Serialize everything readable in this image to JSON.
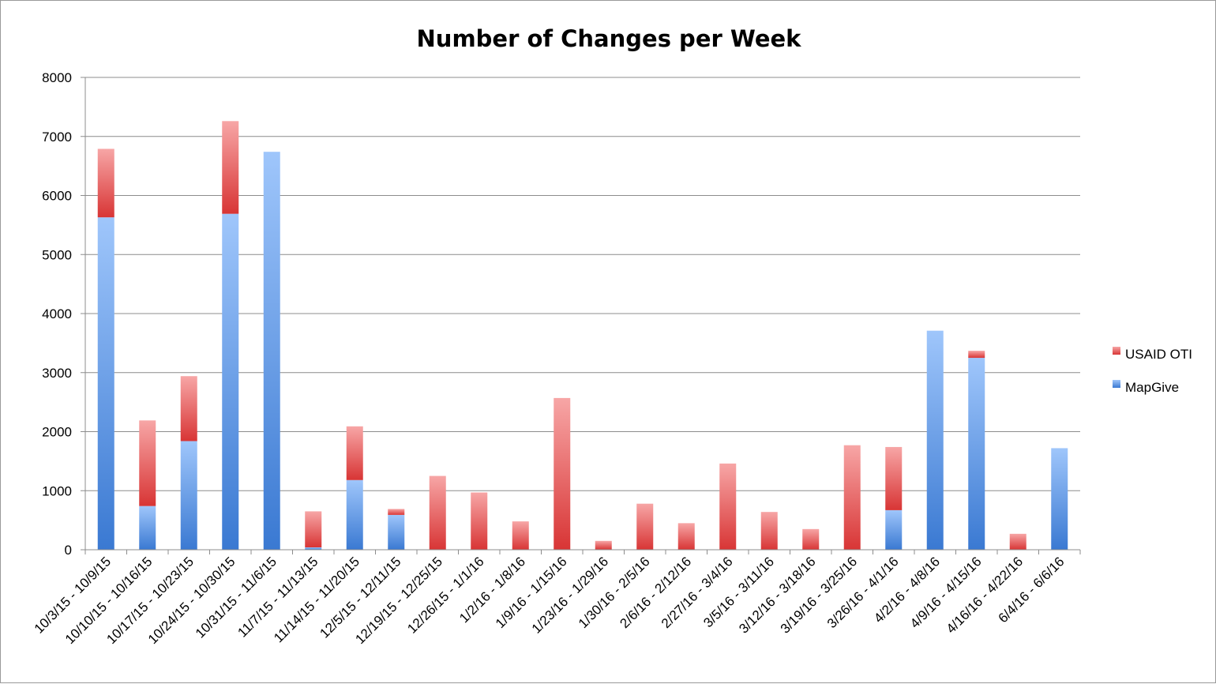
{
  "chart_data": {
    "type": "bar",
    "stacked": true,
    "title": "Number of Changes per Week",
    "xlabel": "",
    "ylabel": "",
    "ylim": [
      0,
      8000
    ],
    "yticks": [
      0,
      1000,
      2000,
      3000,
      4000,
      5000,
      6000,
      7000,
      8000
    ],
    "grid": true,
    "legend_position": "right",
    "categories": [
      "10/3/15 - 10/9/15",
      "10/10/15 - 10/16/15",
      "10/17/15 - 10/23/15",
      "10/24/15 - 10/30/15",
      "10/31/15 - 11/6/15",
      "11/7/15 - 11/13/15",
      "11/14/15 - 11/20/15",
      "12/5/15 - 12/11/15",
      "12/19/15 - 12/25/15",
      "12/26/15 - 1/1/16",
      "1/2/16 - 1/8/16",
      "1/9/16 - 1/15/16",
      "1/23/16 - 1/29/16",
      "1/30/16 - 2/5/16",
      "2/6/16 - 2/12/16",
      "2/27/16 - 3/4/16",
      "3/5/16 - 3/11/16",
      "3/12/16 - 3/18/16",
      "3/19/16 - 3/25/16",
      "3/26/16 - 4/1/16",
      "4/2/16 - 4/8/16",
      "4/9/16 - 4/15/16",
      "4/16/16 - 4/22/16",
      "6/4/16 - 6/6/16"
    ],
    "series": [
      {
        "name": "MapGive",
        "color": "#4a86d4",
        "values": [
          5630,
          740,
          1840,
          5690,
          6740,
          40,
          1180,
          590,
          0,
          0,
          0,
          0,
          0,
          0,
          0,
          0,
          0,
          0,
          0,
          670,
          3710,
          3250,
          0,
          1720
        ]
      },
      {
        "name": "USAID OTI",
        "color": "#e05050",
        "values": [
          1160,
          1450,
          1100,
          1570,
          0,
          610,
          910,
          100,
          1250,
          970,
          480,
          2570,
          150,
          780,
          450,
          1460,
          640,
          350,
          1770,
          1070,
          0,
          120,
          270,
          0
        ]
      }
    ],
    "legend": [
      {
        "name": "USAID OTI",
        "icon": "red-square-icon"
      },
      {
        "name": "MapGive",
        "icon": "blue-square-icon"
      }
    ]
  }
}
